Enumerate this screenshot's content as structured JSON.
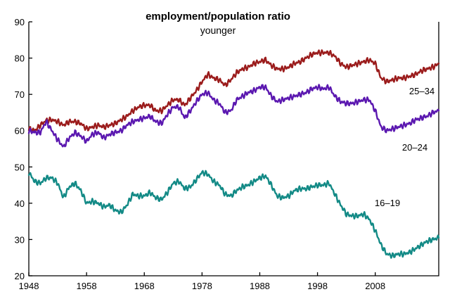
{
  "chart_data": {
    "type": "line",
    "title": "employment/population ratio",
    "subtitle": "younger",
    "xlabel": "",
    "ylabel": "",
    "xlim": [
      1948,
      2019
    ],
    "ylim": [
      20,
      90
    ],
    "x_ticks": [
      1948,
      1958,
      1968,
      1978,
      1988,
      1998,
      2008
    ],
    "y_ticks": [
      20,
      30,
      40,
      50,
      60,
      70,
      80,
      90
    ],
    "grid": false,
    "legend": "inline labels",
    "series": [
      {
        "name": "25–34",
        "color": "#9b1c1c",
        "x": [
          1948,
          1949,
          1950,
          1951,
          1952,
          1953,
          1954,
          1955,
          1956,
          1957,
          1958,
          1959,
          1960,
          1961,
          1962,
          1963,
          1964,
          1965,
          1966,
          1967,
          1968,
          1969,
          1970,
          1971,
          1972,
          1973,
          1974,
          1975,
          1976,
          1977,
          1978,
          1979,
          1980,
          1981,
          1982,
          1983,
          1984,
          1985,
          1986,
          1987,
          1988,
          1989,
          1990,
          1991,
          1992,
          1993,
          1994,
          1995,
          1996,
          1997,
          1998,
          1999,
          2000,
          2001,
          2002,
          2003,
          2004,
          2005,
          2006,
          2007,
          2008,
          2009,
          2010,
          2011,
          2012,
          2013,
          2014,
          2015,
          2016,
          2017,
          2018,
          2019
        ],
        "y": [
          60.5,
          60,
          61.5,
          62.8,
          63,
          62.5,
          61.5,
          62.5,
          62.5,
          62,
          60.5,
          61,
          61.5,
          61,
          61.5,
          62,
          63,
          64,
          65.5,
          66.5,
          67,
          67,
          65.5,
          65.5,
          67,
          68.5,
          68.5,
          67,
          69,
          71,
          73.5,
          75.5,
          74.5,
          74,
          72.5,
          74,
          76,
          77,
          77.5,
          78.5,
          79,
          79.5,
          78,
          77,
          77,
          77.5,
          78.5,
          79,
          80,
          81,
          81.5,
          81.5,
          81.5,
          80.5,
          78.5,
          77.5,
          78,
          78.5,
          79,
          79.5,
          78.5,
          74.5,
          73.5,
          74,
          74.5,
          74.5,
          75,
          75.5,
          76.5,
          77,
          77.5,
          78.5
        ]
      },
      {
        "name": "20–24",
        "color": "#5b18b0",
        "x": [
          1948,
          1949,
          1950,
          1951,
          1952,
          1953,
          1954,
          1955,
          1956,
          1957,
          1958,
          1959,
          1960,
          1961,
          1962,
          1963,
          1964,
          1965,
          1966,
          1967,
          1968,
          1969,
          1970,
          1971,
          1972,
          1973,
          1974,
          1975,
          1976,
          1977,
          1978,
          1979,
          1980,
          1981,
          1982,
          1983,
          1984,
          1985,
          1986,
          1987,
          1988,
          1989,
          1990,
          1991,
          1992,
          1993,
          1994,
          1995,
          1996,
          1997,
          1998,
          1999,
          2000,
          2001,
          2002,
          2003,
          2004,
          2005,
          2006,
          2007,
          2008,
          2009,
          2010,
          2011,
          2012,
          2013,
          2014,
          2015,
          2016,
          2017,
          2018,
          2019
        ],
        "y": [
          60,
          59.5,
          59.5,
          62.5,
          60,
          57.5,
          55.5,
          58,
          59.5,
          58.5,
          57,
          59,
          59.5,
          58,
          59,
          59.5,
          60,
          61.5,
          62.5,
          63,
          63.5,
          64,
          62.5,
          62,
          64.5,
          66.5,
          66.5,
          63.5,
          65.5,
          68,
          70,
          70.5,
          68.5,
          67.5,
          65,
          65.5,
          68.5,
          69.5,
          70.5,
          71,
          72,
          72,
          69.5,
          68,
          68.5,
          69,
          69.5,
          70,
          70.5,
          71.5,
          72,
          71.5,
          72,
          69.5,
          68,
          67.5,
          67.5,
          68,
          68.5,
          68.5,
          65.5,
          61,
          60,
          60.5,
          61,
          61.5,
          62,
          63,
          63.5,
          64,
          65,
          65.5
        ]
      },
      {
        "name": "16–19",
        "color": "#138a86",
        "x": [
          1948,
          1949,
          1950,
          1951,
          1952,
          1953,
          1954,
          1955,
          1956,
          1957,
          1958,
          1959,
          1960,
          1961,
          1962,
          1963,
          1964,
          1965,
          1966,
          1967,
          1968,
          1969,
          1970,
          1971,
          1972,
          1973,
          1974,
          1975,
          1976,
          1977,
          1978,
          1979,
          1980,
          1981,
          1982,
          1983,
          1984,
          1985,
          1986,
          1987,
          1988,
          1989,
          1990,
          1991,
          1992,
          1993,
          1994,
          1995,
          1996,
          1997,
          1998,
          1999,
          2000,
          2001,
          2002,
          2003,
          2004,
          2005,
          2006,
          2007,
          2008,
          2009,
          2010,
          2011,
          2012,
          2013,
          2014,
          2015,
          2016,
          2017,
          2018,
          2019
        ],
        "y": [
          48.5,
          46,
          45.5,
          47,
          47,
          45.5,
          41.5,
          44.5,
          45.5,
          43.5,
          40,
          40.5,
          40,
          39,
          39.5,
          38,
          37.5,
          39.5,
          42.5,
          42,
          42,
          43,
          41.5,
          41,
          43,
          45.5,
          46,
          44,
          44.5,
          46.5,
          48.5,
          48,
          46,
          45,
          42.5,
          42,
          43.5,
          44.5,
          45,
          46,
          47,
          47.5,
          45,
          42,
          41.5,
          42,
          43.5,
          44,
          44,
          44.5,
          45,
          45,
          45.5,
          42.5,
          39.5,
          37,
          36.5,
          36.5,
          37,
          35.5,
          32.5,
          28.5,
          26,
          25.5,
          26,
          26,
          26.5,
          27.5,
          28.5,
          29.5,
          30,
          30.5
        ]
      }
    ]
  }
}
